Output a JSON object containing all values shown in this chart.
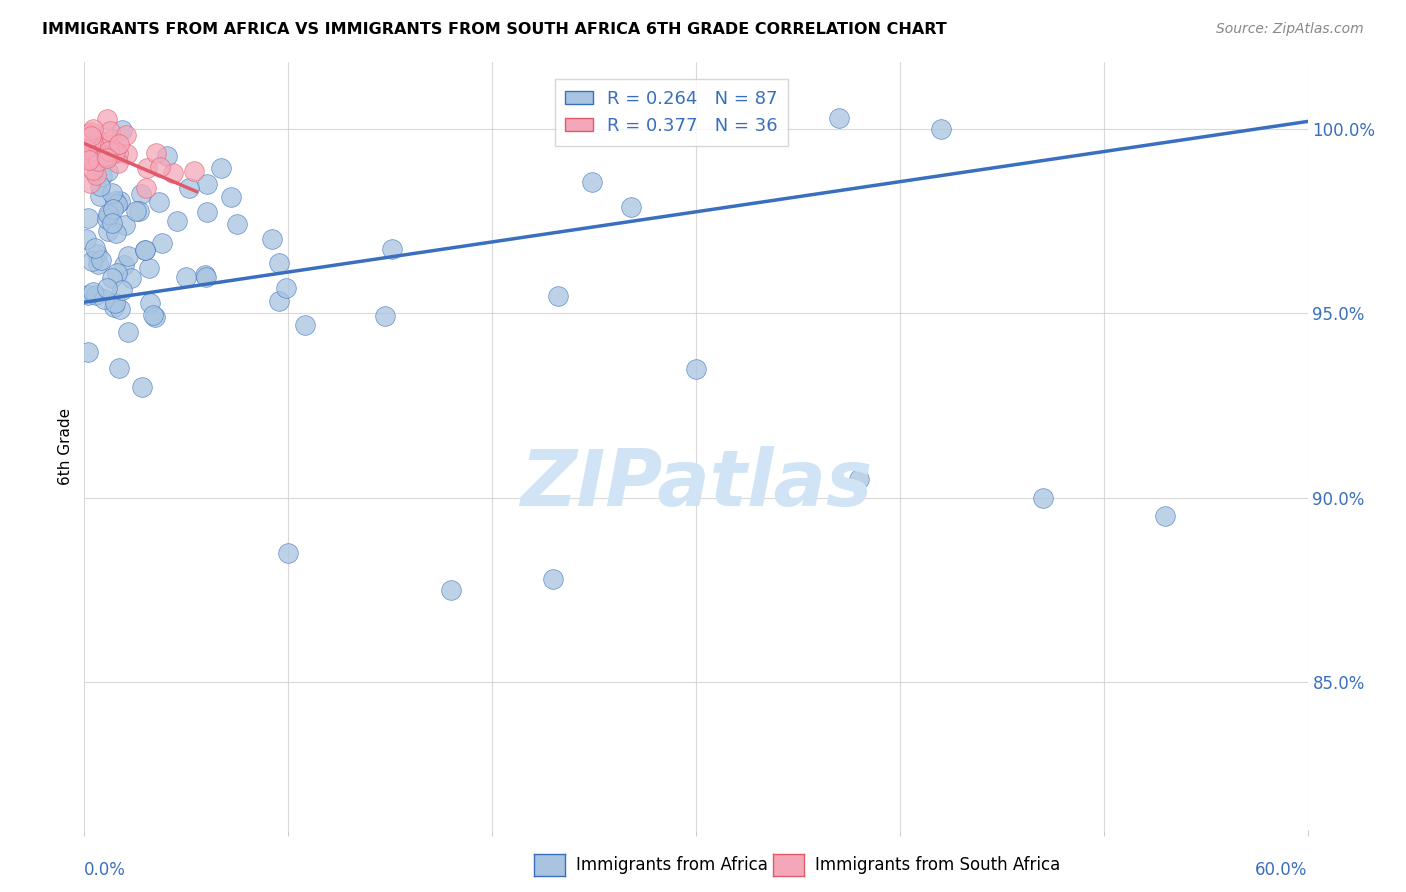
{
  "title": "IMMIGRANTS FROM AFRICA VS IMMIGRANTS FROM SOUTH AFRICA 6TH GRADE CORRELATION CHART",
  "source": "Source: ZipAtlas.com",
  "ylabel": "6th Grade",
  "xmin": 0.0,
  "xmax": 0.6,
  "ymin": 81.0,
  "ymax": 101.8,
  "R_africa": 0.264,
  "N_africa": 87,
  "R_south_africa": 0.377,
  "N_south_africa": 36,
  "color_africa": "#a8c4e0",
  "color_south_africa": "#f4a7b9",
  "trendline_africa_color": "#3a6fbf",
  "trendline_south_africa_color": "#e05a6a",
  "legend_africa": "Immigrants from Africa",
  "legend_south_africa": "Immigrants from South Africa",
  "africa_trend_x": [
    0.0,
    0.6
  ],
  "africa_trend_y": [
    95.3,
    100.2
  ],
  "sa_trend_x": [
    0.0,
    0.055
  ],
  "sa_trend_y": [
    99.6,
    98.3
  ],
  "yticks": [
    85.0,
    90.0,
    95.0,
    100.0
  ],
  "watermark_text": "ZIPatlas",
  "watermark_color": "#d0e4f5"
}
